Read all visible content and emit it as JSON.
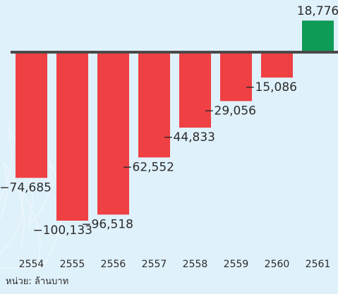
{
  "chart_data": {
    "type": "bar",
    "categories": [
      "2554",
      "2555",
      "2556",
      "2557",
      "2558",
      "2559",
      "2560",
      "2561"
    ],
    "values": [
      -74685,
      -100133,
      -96518,
      -62552,
      -44833,
      -29056,
      -15086,
      18776
    ],
    "value_labels": [
      "−74,685",
      "−100,133",
      "−96,518",
      "−62,552",
      "−44,833",
      "−29,056",
      "−15,086",
      "18,776"
    ],
    "ylim": [
      -100133,
      18776
    ],
    "grid": false,
    "negative_color": "#ef4044",
    "positive_color": "#0f9a55",
    "baseline_color": "#4a4a4a",
    "unit_note": "หน่วย: ล้านบาท"
  }
}
